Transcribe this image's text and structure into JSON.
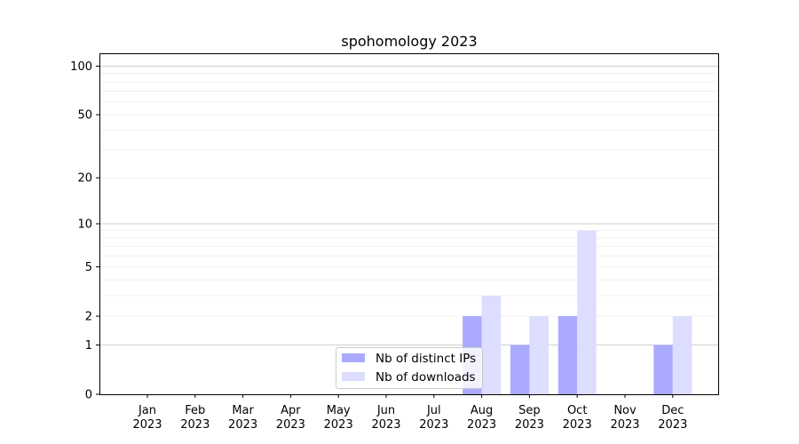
{
  "chart_data": {
    "type": "bar",
    "title": "spohomology 2023",
    "xlabel": "",
    "ylabel": "",
    "yscale": "log1p",
    "ylim": [
      0,
      120
    ],
    "y_ticks": [
      0,
      1,
      2,
      5,
      10,
      20,
      50,
      100
    ],
    "y_tick_labels": [
      "0",
      "1",
      "2",
      "5",
      "10",
      "20",
      "50",
      "100"
    ],
    "categories": [
      "Jan 2023",
      "Feb 2023",
      "Mar 2023",
      "Apr 2023",
      "May 2023",
      "Jun 2023",
      "Jul 2023",
      "Aug 2023",
      "Sep 2023",
      "Oct 2023",
      "Nov 2023",
      "Dec 2023"
    ],
    "category_labels": [
      [
        "Jan",
        "2023"
      ],
      [
        "Feb",
        "2023"
      ],
      [
        "Mar",
        "2023"
      ],
      [
        "Apr",
        "2023"
      ],
      [
        "May",
        "2023"
      ],
      [
        "Jun",
        "2023"
      ],
      [
        "Jul",
        "2023"
      ],
      [
        "Aug",
        "2023"
      ],
      [
        "Sep",
        "2023"
      ],
      [
        "Oct",
        "2023"
      ],
      [
        "Nov",
        "2023"
      ],
      [
        "Dec",
        "2023"
      ]
    ],
    "series": [
      {
        "name": "Nb of distinct IPs",
        "color": "#aaaaff",
        "values": [
          0,
          0,
          0,
          0,
          0,
          0,
          0,
          2,
          1,
          2,
          0,
          1
        ]
      },
      {
        "name": "Nb of downloads",
        "color": "#ddddff",
        "values": [
          0,
          0,
          0,
          0,
          0,
          0,
          0,
          3,
          2,
          9,
          0,
          2
        ]
      }
    ],
    "grid": true,
    "legend_position": "bottom-center"
  }
}
